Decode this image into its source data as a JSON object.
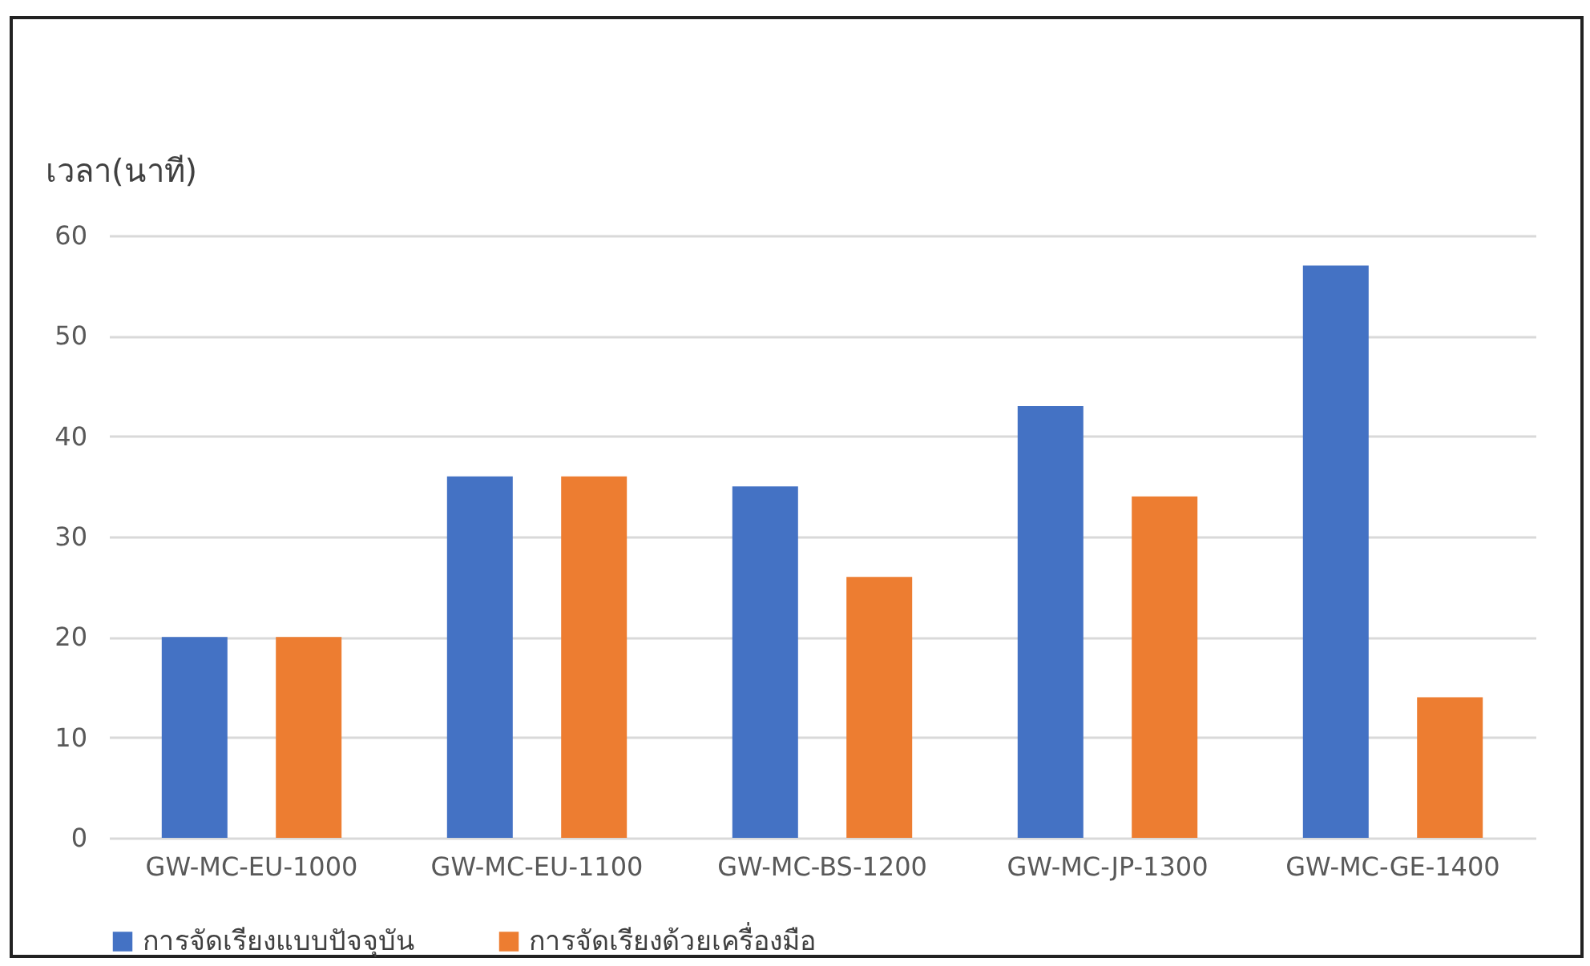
{
  "chart_data": {
    "type": "bar",
    "ylabel": "เวลา(นาที)",
    "categories": [
      "GW-MC-EU-1000",
      "GW-MC-EU-1100",
      "GW-MC-BS-1200",
      "GW-MC-JP-1300",
      "GW-MC-GE-1400"
    ],
    "series": [
      {
        "name": "การจัดเรียงแบบปัจจุบัน",
        "color": "#4472c4",
        "values": [
          20,
          36,
          35,
          43,
          57
        ]
      },
      {
        "name": "การจัดเรียงด้วยเครื่องมือ",
        "color": "#ed7d31",
        "values": [
          20,
          36,
          26,
          34,
          14
        ]
      }
    ],
    "ylim": [
      0,
      60
    ],
    "yticks": [
      0,
      10,
      20,
      30,
      40,
      50,
      60
    ],
    "grid": "y",
    "legend": "bottom"
  }
}
